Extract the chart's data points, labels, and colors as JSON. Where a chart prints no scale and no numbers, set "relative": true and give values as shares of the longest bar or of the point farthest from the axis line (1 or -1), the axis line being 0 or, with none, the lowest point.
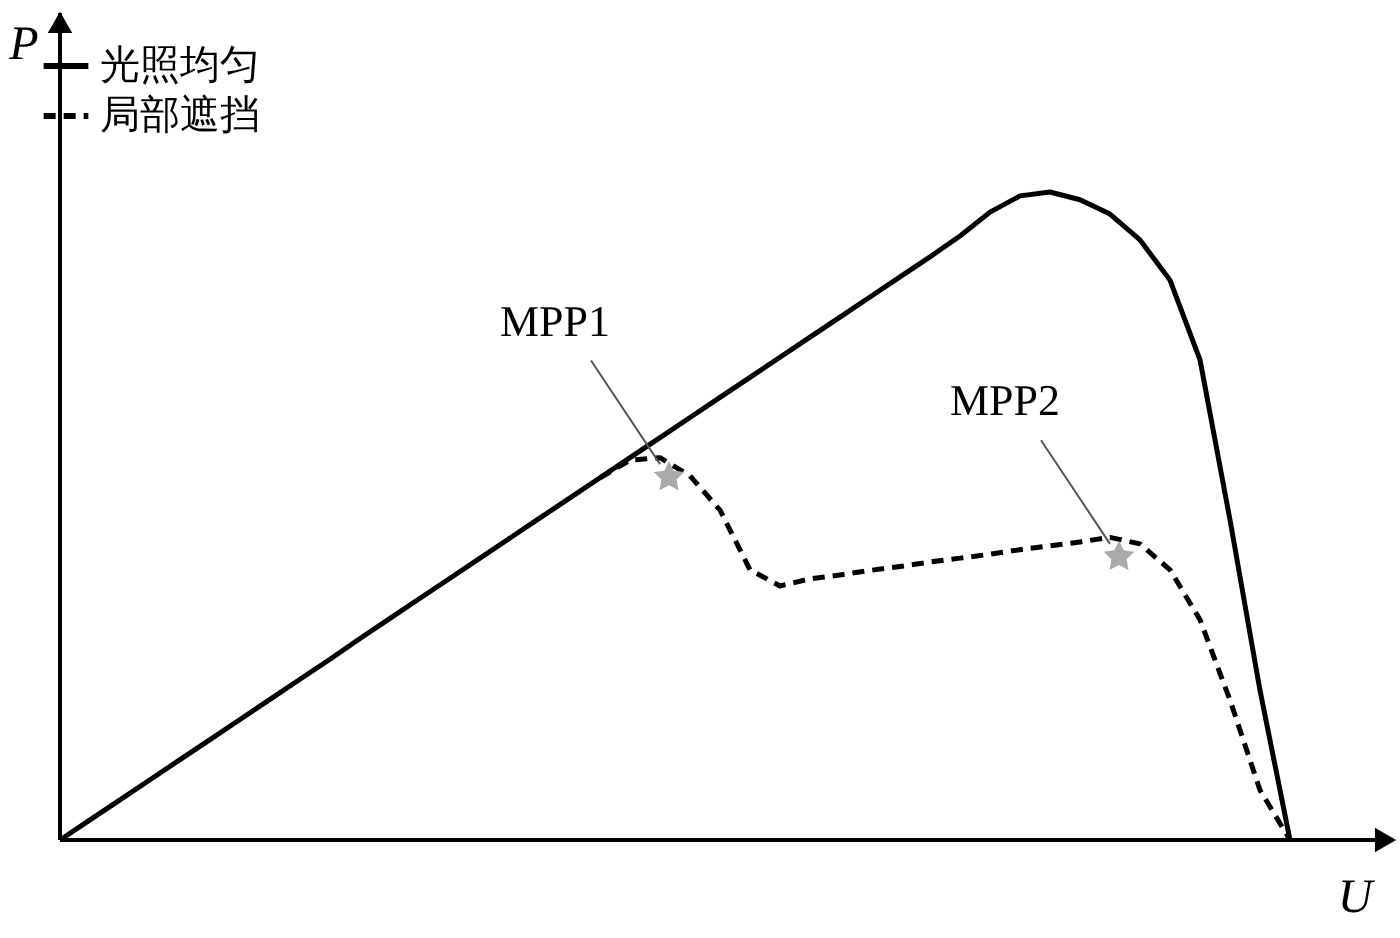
{
  "chart_data": {
    "type": "line",
    "relative": true,
    "xlabel": "U",
    "ylabel": "P",
    "legend": "top left",
    "categories": [
      null,
      null,
      null,
      null,
      null,
      null,
      null,
      null,
      null,
      null,
      null,
      null,
      null,
      null,
      null,
      null,
      null,
      null,
      null,
      null,
      null,
      null,
      null,
      null,
      null,
      null,
      null,
      null,
      null,
      null,
      null,
      null,
      null,
      null,
      null,
      null,
      null,
      null,
      null,
      null,
      null,
      null
    ],
    "series": [
      {
        "name": "光照均匀",
        "color": "#000000",
        "line_style": "solid",
        "values": [
          0,
          0.031,
          0.062,
          0.093,
          0.124,
          0.155,
          0.186,
          0.217,
          0.248,
          0.279,
          0.311,
          0.342,
          0.373,
          0.404,
          0.435,
          0.466,
          0.497,
          0.528,
          0.559,
          0.59,
          0.621,
          0.652,
          0.683,
          0.714,
          0.745,
          0.776,
          0.807,
          0.838,
          0.869,
          0.9,
          0.932,
          0.969,
          0.994,
          1,
          0.988,
          0.966,
          0.926,
          0.864,
          0.741,
          0.494,
          0.231,
          0
        ]
      },
      {
        "name": "局部遮挡",
        "color": "#000000",
        "line_style": "dashed",
        "values": [
          null,
          null,
          null,
          null,
          null,
          null,
          null,
          null,
          null,
          null,
          null,
          null,
          null,
          null,
          null,
          null,
          null,
          null,
          0.559,
          0.586,
          0.59,
          0.562,
          0.509,
          0.417,
          0.392,
          0.403,
          0.409,
          0.416,
          0.422,
          0.429,
          0.435,
          0.441,
          0.448,
          0.454,
          0.46,
          0.467,
          0.457,
          0.417,
          0.34,
          0.216,
          0.077,
          0
        ]
      }
    ],
    "annotations": [
      "MPP1",
      "MPP2"
    ]
  }
}
